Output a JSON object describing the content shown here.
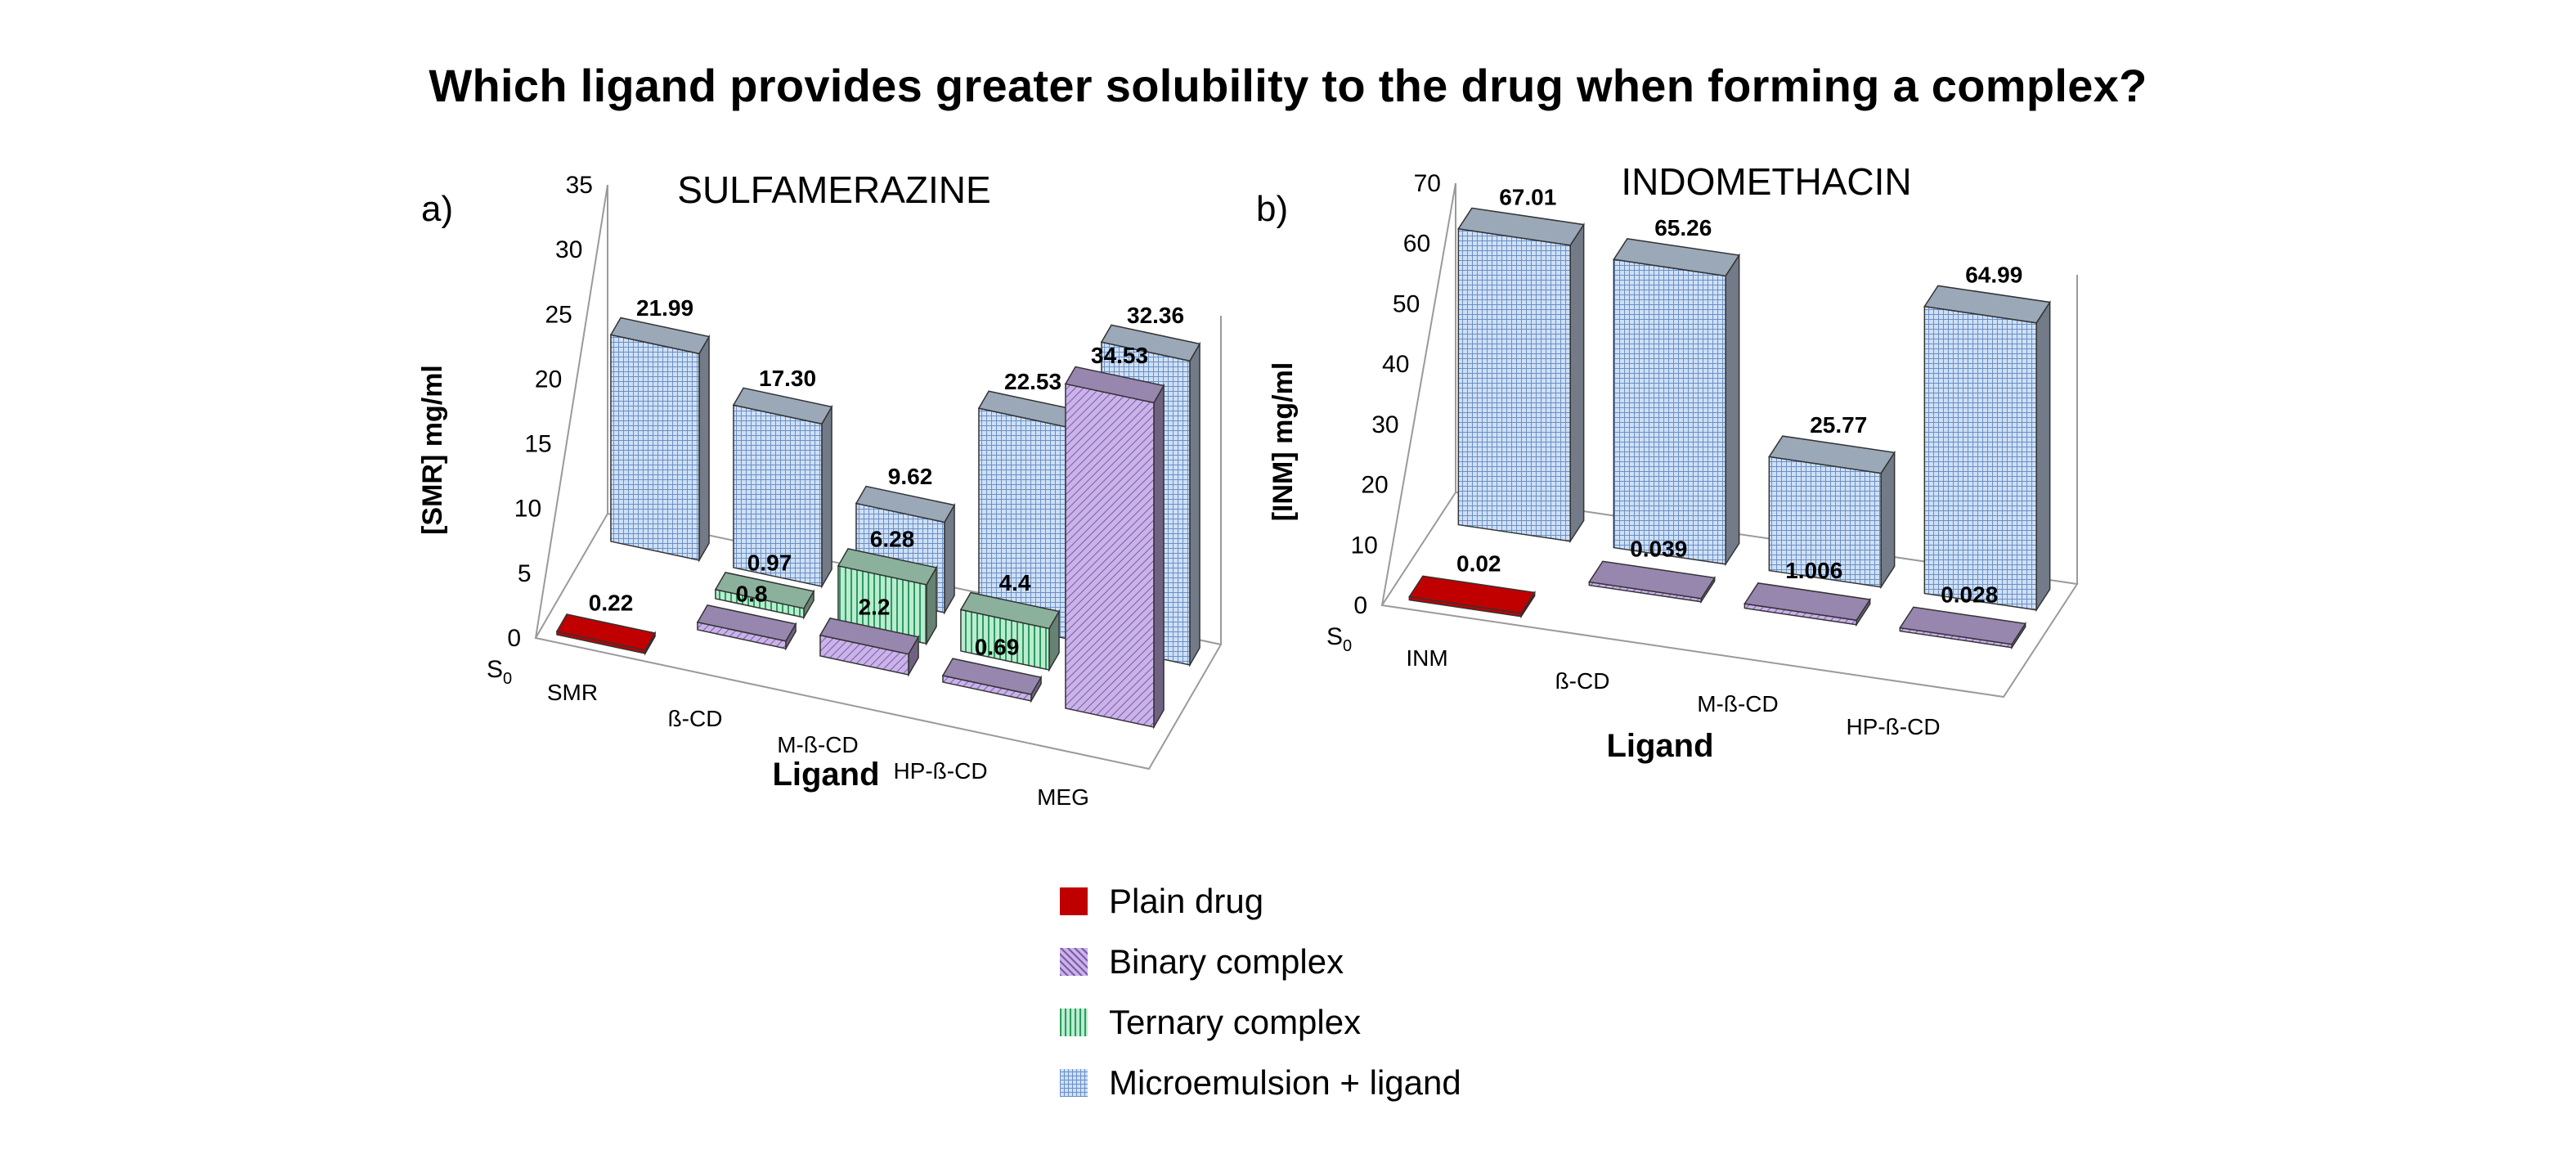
{
  "title": "Which ligand provides greater solubility to the drug when forming a complex?",
  "legend": {
    "items": [
      {
        "key": "plain",
        "label": "Plain drug"
      },
      {
        "key": "binary",
        "label": "Binary complex"
      },
      {
        "key": "ternary",
        "label": "Ternary complex"
      },
      {
        "key": "micro",
        "label": "Microemulsion + ligand"
      }
    ]
  },
  "colors": {
    "plain": "#c00000",
    "binary": "#c9b3e8",
    "ternary": "#b9ecd0",
    "micro": "#cfe0f5"
  },
  "chart_data": [
    {
      "type": "bar",
      "panel_label": "a)",
      "title": "SULFAMERAZINE",
      "ylabel": "[SMR] mg/ml",
      "xlabel": "Ligand",
      "ylim": [
        0,
        35
      ],
      "yticks": [
        "0",
        "5",
        "10",
        "15",
        "20",
        "25",
        "30",
        "35"
      ],
      "depth_label": "S0",
      "categories": [
        "SMR",
        "ß-CD",
        "M-ß-CD",
        "HP-ß-CD",
        "MEG"
      ],
      "series": [
        {
          "key": "plain",
          "values": [
            0.22,
            null,
            null,
            null,
            null
          ],
          "labels": [
            "0.22",
            "",
            "",
            "",
            ""
          ]
        },
        {
          "key": "binary",
          "values": [
            null,
            0.8,
            2.2,
            0.69,
            34.53
          ],
          "labels": [
            "",
            "0.8",
            "2.2",
            "0.69",
            "34.53"
          ]
        },
        {
          "key": "ternary",
          "values": [
            null,
            0.97,
            6.28,
            4.4,
            null
          ],
          "labels": [
            "",
            "0.97",
            "6.28",
            "4.4",
            ""
          ]
        },
        {
          "key": "micro",
          "values": [
            21.99,
            17.3,
            9.62,
            22.53,
            32.36
          ],
          "labels": [
            "21.99",
            "17.30",
            "9.62",
            "22.53",
            "32.36"
          ]
        }
      ]
    },
    {
      "type": "bar",
      "panel_label": "b)",
      "title": "INDOMETHACIN",
      "ylabel": "[INM] mg/ml",
      "xlabel": "Ligand",
      "ylim": [
        0,
        70
      ],
      "yticks": [
        "0",
        "10",
        "20",
        "30",
        "40",
        "50",
        "60",
        "70"
      ],
      "depth_label": "S0",
      "categories": [
        "INM",
        "ß-CD",
        "M-ß-CD",
        "HP-ß-CD"
      ],
      "series": [
        {
          "key": "plain",
          "values": [
            0.02,
            null,
            null,
            null
          ],
          "labels": [
            "0.02",
            "",
            "",
            ""
          ]
        },
        {
          "key": "binary",
          "values": [
            null,
            0.039,
            1.006,
            0.028
          ],
          "labels": [
            "",
            "0.039",
            "1.006",
            "0.028"
          ]
        },
        {
          "key": "micro",
          "values": [
            67.01,
            65.26,
            25.77,
            64.99
          ],
          "labels": [
            "67.01",
            "65.26",
            "25.77",
            "64.99"
          ]
        }
      ]
    }
  ]
}
